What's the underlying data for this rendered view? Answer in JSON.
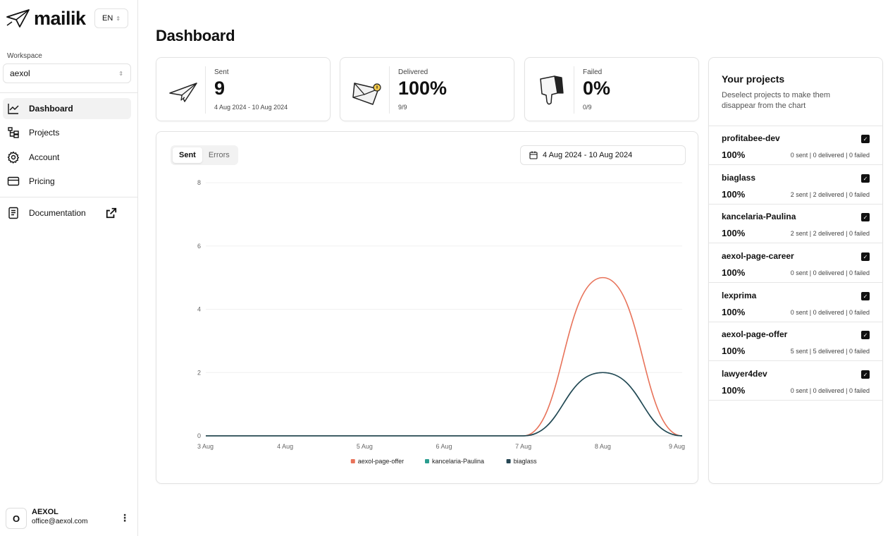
{
  "app": {
    "name": "mailik",
    "language": "EN"
  },
  "workspace": {
    "label": "Workspace",
    "value": "aexol"
  },
  "nav": {
    "dashboard": "Dashboard",
    "projects": "Projects",
    "account": "Account",
    "pricing": "Pricing",
    "documentation": "Documentation"
  },
  "user": {
    "initial": "O",
    "name": "AEXOL",
    "email": "office@aexol.com",
    "menu_icon": "⋮"
  },
  "page": {
    "title": "Dashboard"
  },
  "stats": {
    "sent": {
      "label": "Sent",
      "value": "9",
      "sub": "4 Aug 2024 - 10 Aug 2024"
    },
    "delivered": {
      "label": "Delivered",
      "value": "100%",
      "sub": "9/9"
    },
    "failed": {
      "label": "Failed",
      "value": "0%",
      "sub": "0/9"
    }
  },
  "chart_panel": {
    "tabs": [
      "Sent",
      "Errors"
    ],
    "active_tab": "Sent",
    "date_range": "4 Aug 2024 - 10 Aug 2024"
  },
  "chart_data": {
    "type": "line",
    "title": "",
    "xlabel": "",
    "ylabel": "",
    "x": [
      "3 Aug",
      "4 Aug",
      "5 Aug",
      "6 Aug",
      "7 Aug",
      "8 Aug",
      "9 Aug"
    ],
    "yticks": [
      "0",
      "2",
      "4",
      "6",
      "8"
    ],
    "ylim": [
      0,
      8
    ],
    "grid": true,
    "legend_position": "bottom",
    "series": [
      {
        "name": "aexol-page-offer",
        "color": "#e8735a",
        "values": [
          0,
          0,
          0,
          0,
          0,
          5,
          0
        ]
      },
      {
        "name": "kancelaria-Paulina",
        "color": "#2a9d8f",
        "values": [
          0,
          0,
          0,
          0,
          0,
          2,
          0
        ]
      },
      {
        "name": "biaglass",
        "color": "#264653",
        "values": [
          0,
          0,
          0,
          0,
          0,
          2,
          0
        ]
      }
    ]
  },
  "projects": {
    "title": "Your projects",
    "description": "Deselect projects to make them disappear from the chart",
    "items": [
      {
        "name": "profitabee-dev",
        "pct": "100%",
        "stats": "0 sent | 0 delivered | 0 failed"
      },
      {
        "name": "biaglass",
        "pct": "100%",
        "stats": "2 sent | 2 delivered | 0 failed"
      },
      {
        "name": "kancelaria-Paulina",
        "pct": "100%",
        "stats": "2 sent | 2 delivered | 0 failed"
      },
      {
        "name": "aexol-page-career",
        "pct": "100%",
        "stats": "0 sent | 0 delivered | 0 failed"
      },
      {
        "name": "lexprima",
        "pct": "100%",
        "stats": "0 sent | 0 delivered | 0 failed"
      },
      {
        "name": "aexol-page-offer",
        "pct": "100%",
        "stats": "5 sent | 5 delivered | 0 failed"
      },
      {
        "name": "lawyer4dev",
        "pct": "100%",
        "stats": "0 sent | 0 delivered | 0 failed"
      }
    ],
    "check_glyph": "✓"
  }
}
